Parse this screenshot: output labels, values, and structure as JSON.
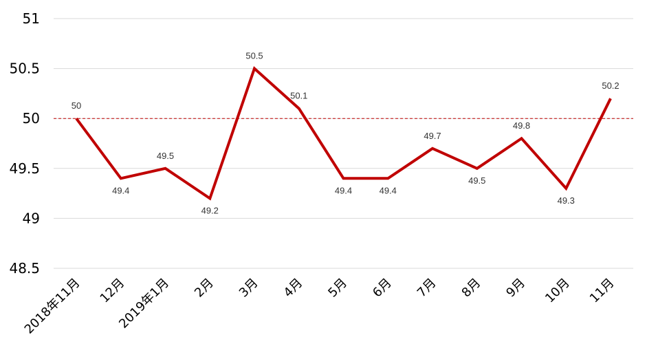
{
  "chart_data": {
    "type": "line",
    "categories": [
      "2018年11月",
      "12月",
      "2019年1月",
      "2月",
      "3月",
      "4月",
      "5月",
      "6月",
      "7月",
      "8月",
      "9月",
      "10月",
      "11月"
    ],
    "series": [
      {
        "values": [
          50,
          49.4,
          49.5,
          49.2,
          50.5,
          50.1,
          49.4,
          49.4,
          49.7,
          49.5,
          49.8,
          49.3,
          50.2
        ]
      }
    ],
    "data_labels": [
      "50",
      "49.4",
      "49.5",
      "49.2",
      "50.5",
      "50.1",
      "49.4",
      "49.4",
      "49.7",
      "49.5",
      "49.8",
      "49.3",
      "50.2"
    ],
    "label_positions": [
      "above",
      "below",
      "above",
      "below",
      "above",
      "above",
      "below",
      "below",
      "above",
      "below",
      "above",
      "below",
      "above"
    ],
    "y_ticks": [
      "48.5",
      "49",
      "49.5",
      "50",
      "50.5",
      "51"
    ],
    "ylim": [
      48.5,
      51
    ],
    "reference_line": 50,
    "grid": true,
    "colors": {
      "line": "#c00000",
      "grid": "#d9d9d9",
      "reference": "#c00000"
    }
  }
}
